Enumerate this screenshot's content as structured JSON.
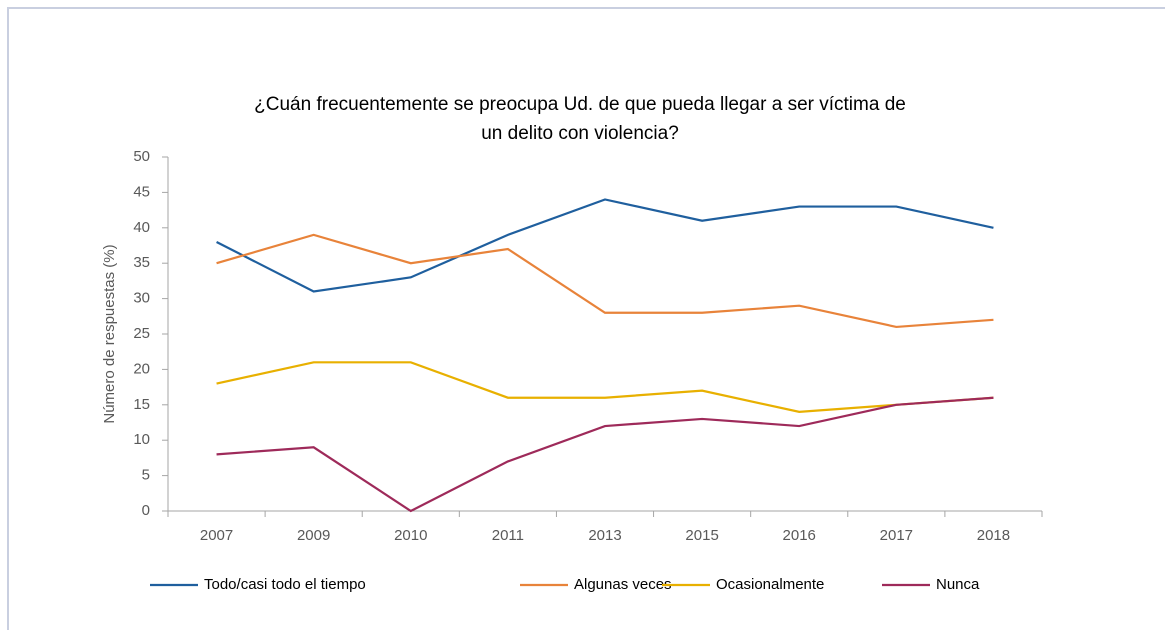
{
  "chart_data": {
    "type": "line",
    "title": [
      "¿Cuán frecuentemente se preocupa Ud. de que pueda llegar a ser víctima de",
      "un delito con violencia?"
    ],
    "y_label": "Número de respuestas (%)",
    "categories": [
      "2007",
      "2009",
      "2010",
      "2011",
      "2013",
      "2015",
      "2016",
      "2017",
      "2018"
    ],
    "series": [
      {
        "name": "Todo/casi todo el tiempo",
        "color": "#1f5f9e",
        "values": [
          38,
          31,
          33,
          39,
          44,
          41,
          43,
          43,
          40
        ]
      },
      {
        "name": "Algunas veces",
        "color": "#e8833a",
        "values": [
          35,
          39,
          35,
          37,
          28,
          28,
          29,
          26,
          27
        ]
      },
      {
        "name": "Ocasionalmente",
        "color": "#e8b000",
        "values": [
          18,
          21,
          21,
          16,
          16,
          17,
          14,
          15,
          16
        ]
      },
      {
        "name": "Nunca",
        "color": "#9e2a5a",
        "values": [
          8,
          9,
          0,
          7,
          12,
          13,
          12,
          15,
          16
        ]
      }
    ],
    "ylim": [
      0,
      50
    ],
    "yticks": [
      0,
      5,
      10,
      15,
      20,
      25,
      30,
      35,
      40,
      45,
      50
    ],
    "legend": "bottom"
  }
}
